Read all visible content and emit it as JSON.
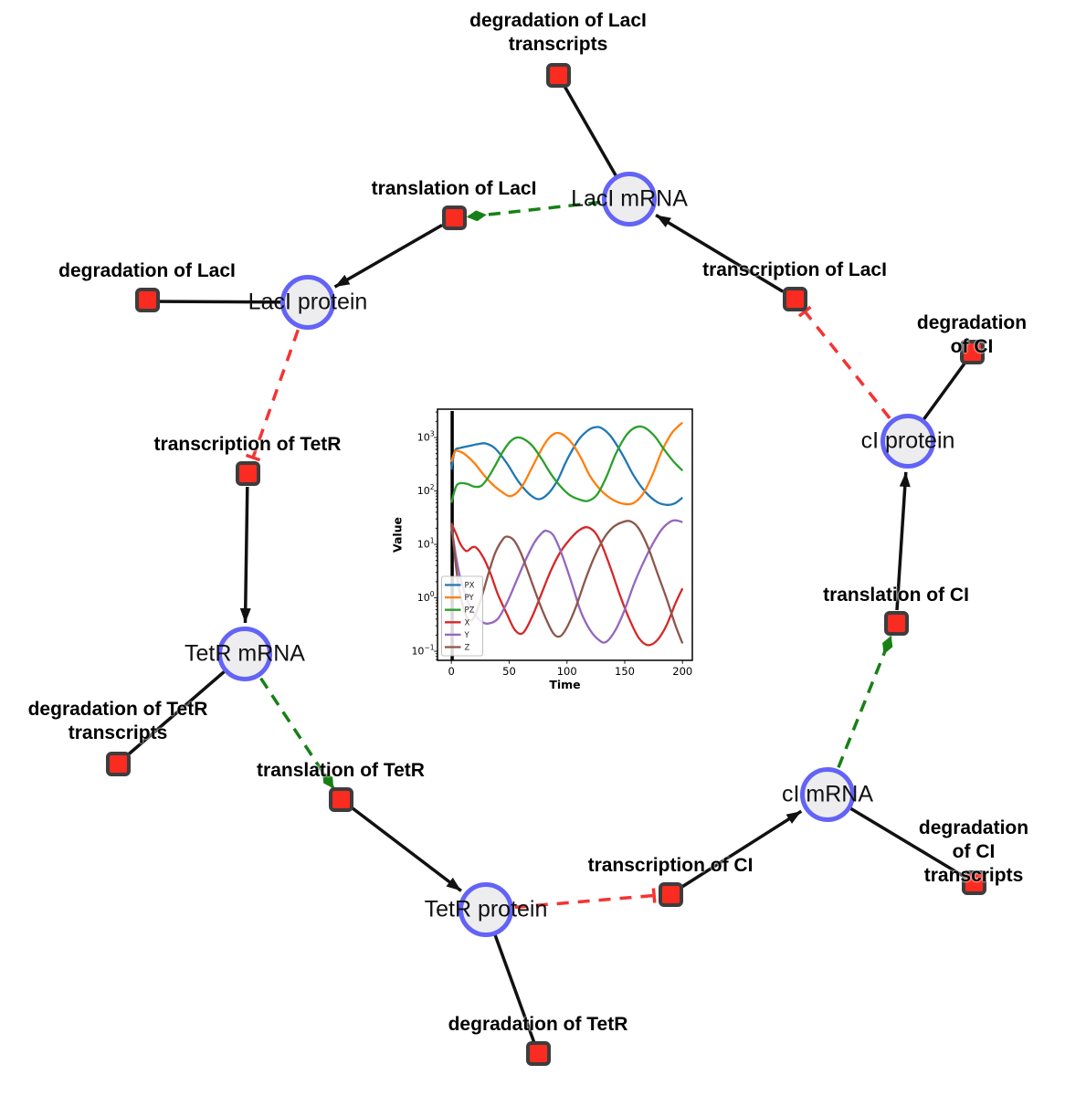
{
  "diagram": {
    "species": [
      {
        "id": "laci-mrna",
        "label": "LacI mRNA"
      },
      {
        "id": "laci-protein",
        "label": "LacI protein"
      },
      {
        "id": "tetr-mrna",
        "label": "TetR mRNA"
      },
      {
        "id": "tetr-protein",
        "label": "TetR protein"
      },
      {
        "id": "ci-mrna",
        "label": "cI mRNA"
      },
      {
        "id": "ci-protein",
        "label": "cI protein"
      }
    ],
    "reactions": [
      {
        "id": "deg-laci-transcripts",
        "label": "degradation of LacI\ntranscripts"
      },
      {
        "id": "translation-laci",
        "label": "translation of LacI"
      },
      {
        "id": "deg-laci",
        "label": "degradation of LacI"
      },
      {
        "id": "transcription-laci",
        "label": "transcription of LacI"
      },
      {
        "id": "deg-ci",
        "label": "degradation of CI"
      },
      {
        "id": "transcription-tetr",
        "label": "transcription of TetR"
      },
      {
        "id": "deg-tetr-transcripts",
        "label": "degradation of TetR\ntranscripts"
      },
      {
        "id": "translation-tetr",
        "label": "translation of TetR"
      },
      {
        "id": "deg-tetr",
        "label": "degradation of TetR"
      },
      {
        "id": "transcription-ci",
        "label": "transcription of CI"
      },
      {
        "id": "deg-ci-transcripts",
        "label": "degradation of CI\ntranscripts"
      },
      {
        "id": "translation-ci",
        "label": "translation of CI"
      }
    ],
    "edges": [
      {
        "from": "LacI mRNA",
        "to": "degradation of LacI transcripts",
        "type": "consumption"
      },
      {
        "from": "LacI mRNA",
        "to": "translation of LacI",
        "type": "modifier"
      },
      {
        "from": "translation of LacI",
        "to": "LacI protein",
        "type": "production"
      },
      {
        "from": "LacI protein",
        "to": "degradation of LacI",
        "type": "consumption"
      },
      {
        "from": "LacI protein",
        "to": "transcription of TetR",
        "type": "inhibition"
      },
      {
        "from": "transcription of TetR",
        "to": "TetR mRNA",
        "type": "production"
      },
      {
        "from": "TetR mRNA",
        "to": "degradation of TetR transcripts",
        "type": "consumption"
      },
      {
        "from": "TetR mRNA",
        "to": "translation of TetR",
        "type": "modifier"
      },
      {
        "from": "translation of TetR",
        "to": "TetR protein",
        "type": "production"
      },
      {
        "from": "TetR protein",
        "to": "degradation of TetR",
        "type": "consumption"
      },
      {
        "from": "TetR protein",
        "to": "transcription of CI",
        "type": "inhibition"
      },
      {
        "from": "transcription of CI",
        "to": "cI mRNA",
        "type": "production"
      },
      {
        "from": "cI mRNA",
        "to": "degradation of CI transcripts",
        "type": "consumption"
      },
      {
        "from": "cI mRNA",
        "to": "translation of CI",
        "type": "modifier"
      },
      {
        "from": "translation of CI",
        "to": "cI protein",
        "type": "production"
      },
      {
        "from": "cI protein",
        "to": "degradation of CI",
        "type": "consumption"
      },
      {
        "from": "cI protein",
        "to": "transcription of LacI",
        "type": "inhibition"
      },
      {
        "from": "transcription of LacI",
        "to": "LacI mRNA",
        "type": "production"
      }
    ],
    "colors": {
      "species_fill": "#ededef",
      "species_border": "#6363f7",
      "reaction_fill": "#fa2b20",
      "reaction_border": "#3d3d3d",
      "consumption_edge": "#111111",
      "production_edge": "#111111",
      "modifier_edge": "#168016",
      "inhibition_edge": "#f43333"
    }
  },
  "chart_data": {
    "type": "line",
    "title": "",
    "xlabel": "Time",
    "ylabel": "Value",
    "x_axis": {
      "ticks": [
        0,
        50,
        100,
        150,
        200
      ],
      "lim": [
        -12,
        208.5
      ]
    },
    "y_axis": {
      "scale": "log",
      "tick_exponents": [
        -1,
        0,
        1,
        2,
        3
      ],
      "log_lim": [
        -1.17,
        3.53
      ]
    },
    "legend": {
      "position": "lower left",
      "entries": [
        "PX",
        "PY",
        "PZ",
        "X",
        "Y",
        "Z"
      ]
    },
    "initial_event_line_t": 0.7,
    "series": [
      {
        "name": "PX",
        "color": "#1f77b4",
        "points": [
          [
            0,
            250
          ],
          [
            3,
            560
          ],
          [
            8,
            640
          ],
          [
            16,
            700
          ],
          [
            24,
            760
          ],
          [
            30,
            770
          ],
          [
            38,
            620
          ],
          [
            48,
            330
          ],
          [
            58,
            150
          ],
          [
            68,
            85
          ],
          [
            76,
            70
          ],
          [
            84,
            90
          ],
          [
            92,
            160
          ],
          [
            100,
            380
          ],
          [
            110,
            900
          ],
          [
            118,
            1350
          ],
          [
            124,
            1550
          ],
          [
            130,
            1500
          ],
          [
            138,
            1050
          ],
          [
            148,
            480
          ],
          [
            158,
            190
          ],
          [
            168,
            95
          ],
          [
            178,
            62
          ],
          [
            186,
            55
          ],
          [
            193,
            58
          ],
          [
            200,
            75
          ]
        ]
      },
      {
        "name": "PY",
        "color": "#ff7f0e",
        "points": [
          [
            0,
            350
          ],
          [
            3,
            540
          ],
          [
            6,
            560
          ],
          [
            12,
            480
          ],
          [
            20,
            330
          ],
          [
            28,
            200
          ],
          [
            36,
            130
          ],
          [
            44,
            95
          ],
          [
            50,
            80
          ],
          [
            56,
            90
          ],
          [
            62,
            130
          ],
          [
            70,
            280
          ],
          [
            78,
            600
          ],
          [
            84,
            950
          ],
          [
            90,
            1200
          ],
          [
            96,
            1150
          ],
          [
            104,
            800
          ],
          [
            112,
            420
          ],
          [
            120,
            190
          ],
          [
            130,
            100
          ],
          [
            140,
            68
          ],
          [
            150,
            57
          ],
          [
            158,
            60
          ],
          [
            166,
            90
          ],
          [
            174,
            200
          ],
          [
            182,
            550
          ],
          [
            190,
            1150
          ],
          [
            196,
            1600
          ],
          [
            200,
            1900
          ]
        ]
      },
      {
        "name": "PZ",
        "color": "#2ca02c",
        "points": [
          [
            0,
            60
          ],
          [
            4,
            120
          ],
          [
            8,
            140
          ],
          [
            14,
            135
          ],
          [
            20,
            120
          ],
          [
            26,
            125
          ],
          [
            32,
            180
          ],
          [
            38,
            300
          ],
          [
            44,
            520
          ],
          [
            50,
            800
          ],
          [
            56,
            990
          ],
          [
            62,
            950
          ],
          [
            70,
            700
          ],
          [
            78,
            400
          ],
          [
            86,
            210
          ],
          [
            94,
            125
          ],
          [
            102,
            85
          ],
          [
            110,
            70
          ],
          [
            118,
            65
          ],
          [
            126,
            85
          ],
          [
            134,
            180
          ],
          [
            142,
            480
          ],
          [
            150,
            1000
          ],
          [
            156,
            1400
          ],
          [
            162,
            1600
          ],
          [
            168,
            1500
          ],
          [
            176,
            1050
          ],
          [
            184,
            600
          ],
          [
            192,
            360
          ],
          [
            200,
            240
          ]
        ]
      },
      {
        "name": "X",
        "color": "#d62728",
        "points": [
          [
            0,
            25
          ],
          [
            4,
            16
          ],
          [
            8,
            10
          ],
          [
            13,
            7.5
          ],
          [
            18,
            8.8
          ],
          [
            22,
            8.5
          ],
          [
            28,
            5.5
          ],
          [
            34,
            2.8
          ],
          [
            40,
            1.2
          ],
          [
            48,
            0.5
          ],
          [
            55,
            0.25
          ],
          [
            62,
            0.22
          ],
          [
            70,
            0.45
          ],
          [
            78,
            1.2
          ],
          [
            86,
            3.2
          ],
          [
            94,
            7
          ],
          [
            102,
            12
          ],
          [
            110,
            18
          ],
          [
            117,
            21
          ],
          [
            124,
            17
          ],
          [
            130,
            10
          ],
          [
            138,
            3.5
          ],
          [
            146,
            1.1
          ],
          [
            154,
            0.4
          ],
          [
            162,
            0.18
          ],
          [
            170,
            0.13
          ],
          [
            178,
            0.16
          ],
          [
            186,
            0.3
          ],
          [
            194,
            0.8
          ],
          [
            200,
            1.5
          ]
        ]
      },
      {
        "name": "Y",
        "color": "#9467bd",
        "points": [
          [
            0,
            22
          ],
          [
            4,
            6
          ],
          [
            8,
            2.2
          ],
          [
            14,
            0.9
          ],
          [
            20,
            0.5
          ],
          [
            26,
            0.36
          ],
          [
            32,
            0.33
          ],
          [
            40,
            0.4
          ],
          [
            48,
            0.8
          ],
          [
            56,
            2
          ],
          [
            64,
            5
          ],
          [
            72,
            11
          ],
          [
            78,
            16
          ],
          [
            82,
            18
          ],
          [
            88,
            15
          ],
          [
            94,
            8
          ],
          [
            100,
            3.5
          ],
          [
            106,
            1.4
          ],
          [
            112,
            0.55
          ],
          [
            120,
            0.25
          ],
          [
            128,
            0.16
          ],
          [
            134,
            0.15
          ],
          [
            142,
            0.25
          ],
          [
            150,
            0.6
          ],
          [
            158,
            1.8
          ],
          [
            166,
            4.5
          ],
          [
            174,
            10
          ],
          [
            182,
            19
          ],
          [
            190,
            27
          ],
          [
            195,
            28
          ],
          [
            200,
            26
          ]
        ]
      },
      {
        "name": "Z",
        "color": "#8c564b",
        "points": [
          [
            0,
            25
          ],
          [
            3,
            6
          ],
          [
            6,
            1.8
          ],
          [
            10,
            0.7
          ],
          [
            15,
            0.38
          ],
          [
            20,
            0.45
          ],
          [
            26,
            1
          ],
          [
            32,
            2.8
          ],
          [
            38,
            7
          ],
          [
            44,
            12
          ],
          [
            48,
            14
          ],
          [
            54,
            12
          ],
          [
            60,
            7
          ],
          [
            66,
            3.2
          ],
          [
            72,
            1.4
          ],
          [
            80,
            0.5
          ],
          [
            88,
            0.22
          ],
          [
            94,
            0.19
          ],
          [
            100,
            0.28
          ],
          [
            108,
            0.7
          ],
          [
            116,
            2.2
          ],
          [
            124,
            6
          ],
          [
            132,
            13
          ],
          [
            140,
            21
          ],
          [
            148,
            26
          ],
          [
            155,
            27
          ],
          [
            162,
            20
          ],
          [
            170,
            9
          ],
          [
            178,
            3
          ],
          [
            186,
            1
          ],
          [
            194,
            0.3
          ],
          [
            200,
            0.14
          ]
        ]
      }
    ]
  }
}
